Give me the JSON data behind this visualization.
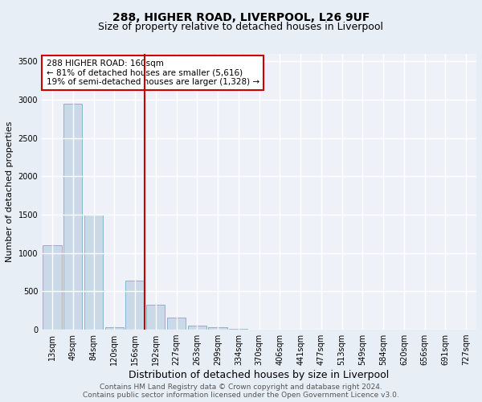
{
  "title": "288, HIGHER ROAD, LIVERPOOL, L26 9UF",
  "subtitle": "Size of property relative to detached houses in Liverpool",
  "xlabel": "Distribution of detached houses by size in Liverpool",
  "ylabel": "Number of detached properties",
  "categories": [
    "13sqm",
    "49sqm",
    "84sqm",
    "120sqm",
    "156sqm",
    "192sqm",
    "227sqm",
    "263sqm",
    "299sqm",
    "334sqm",
    "370sqm",
    "406sqm",
    "441sqm",
    "477sqm",
    "513sqm",
    "549sqm",
    "584sqm",
    "620sqm",
    "656sqm",
    "691sqm",
    "727sqm"
  ],
  "values": [
    1100,
    2950,
    1500,
    30,
    640,
    330,
    155,
    55,
    30,
    10,
    5,
    5,
    5,
    5,
    3,
    3,
    3,
    3,
    3,
    3,
    3
  ],
  "bar_color": "#c9d9e8",
  "bar_edge_color": "#7aaec8",
  "highlight_index": 4,
  "highlight_color": "#cc0000",
  "annotation_text": "288 HIGHER ROAD: 160sqm\n← 81% of detached houses are smaller (5,616)\n19% of semi-detached houses are larger (1,328) →",
  "annotation_box_color": "#ffffff",
  "annotation_box_edge_color": "#cc0000",
  "ylim": [
    0,
    3600
  ],
  "yticks": [
    0,
    500,
    1000,
    1500,
    2000,
    2500,
    3000,
    3500
  ],
  "footer1": "Contains HM Land Registry data © Crown copyright and database right 2024.",
  "footer2": "Contains public sector information licensed under the Open Government Licence v3.0.",
  "background_color": "#e8eef5",
  "plot_background_color": "#eef2f8",
  "grid_color": "#ffffff",
  "title_fontsize": 10,
  "subtitle_fontsize": 9,
  "xlabel_fontsize": 9,
  "ylabel_fontsize": 8,
  "tick_fontsize": 7,
  "footer_fontsize": 6.5
}
